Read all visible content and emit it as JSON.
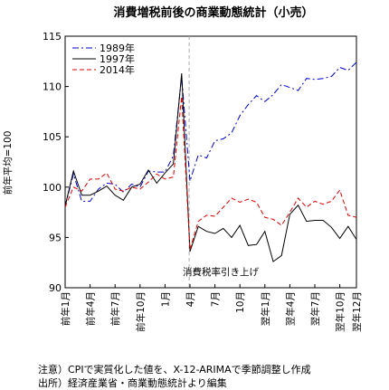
{
  "chart_data": {
    "type": "line",
    "title": "消費増税前後の商業動態統計（小売）",
    "ylabel": "前年平均=100",
    "ylim": [
      90,
      115
    ],
    "yticks": [
      90,
      95,
      100,
      105,
      110,
      115
    ],
    "x_labels": [
      "前年1月",
      "前年4月",
      "前年7月",
      "前年10月",
      "1月",
      "4月",
      "7月",
      "10月",
      "翌年1月",
      "翌年4月",
      "翌年7月",
      "翌年10月",
      "翌年12月"
    ],
    "x_label_index": [
      0,
      3,
      6,
      9,
      12,
      15,
      18,
      21,
      24,
      27,
      30,
      33,
      35
    ],
    "n_points": 36,
    "series": [
      {
        "name": "1989年",
        "color": "#0000cc",
        "dash": "dashdot",
        "values": [
          98.1,
          101.3,
          98.6,
          98.6,
          99.8,
          100.4,
          100.3,
          99.5,
          100.3,
          100.0,
          101.6,
          101.5,
          101.5,
          103.1,
          111.0,
          100.6,
          103.2,
          102.9,
          104.6,
          104.8,
          105.4,
          107.1,
          108.2,
          109.1,
          108.5,
          109.2,
          110.2,
          109.9,
          109.6,
          110.8,
          110.7,
          110.8,
          111.0,
          111.9,
          111.6,
          112.4
        ]
      },
      {
        "name": "1997年",
        "color": "#000000",
        "dash": "solid",
        "values": [
          98.1,
          101.6,
          99.2,
          99.2,
          99.6,
          100.1,
          99.2,
          98.7,
          100.0,
          100.3,
          101.7,
          100.4,
          101.4,
          102.3,
          111.3,
          93.6,
          96.1,
          95.6,
          95.4,
          95.9,
          95.0,
          96.2,
          94.2,
          94.3,
          95.6,
          92.6,
          93.2,
          97.3,
          98.2,
          96.6,
          96.7,
          96.7,
          96.0,
          94.9,
          96.1,
          94.8
        ]
      },
      {
        "name": "2014年",
        "color": "#dd0000",
        "dash": "dashed",
        "values": [
          98.0,
          100.0,
          99.6,
          100.8,
          100.8,
          101.4,
          99.8,
          99.6,
          100.0,
          99.8,
          100.5,
          101.3,
          100.8,
          101.0,
          109.0,
          93.8,
          96.6,
          97.2,
          97.1,
          98.0,
          98.9,
          98.5,
          98.8,
          98.5,
          97.0,
          96.8,
          96.2,
          97.5,
          98.9,
          98.0,
          98.6,
          98.3,
          98.6,
          99.7,
          97.2,
          97.0
        ]
      }
    ],
    "annotation": "消費税率引き上げ",
    "event_index": 14.9,
    "legend_position": "top-left",
    "grid": false
  },
  "notes": {
    "line1": "注意）CPIで実質化した値を、X-12-ARIMAで季節調整し作成",
    "line2": "出所）経済産業省・商業動態統計より編集"
  }
}
